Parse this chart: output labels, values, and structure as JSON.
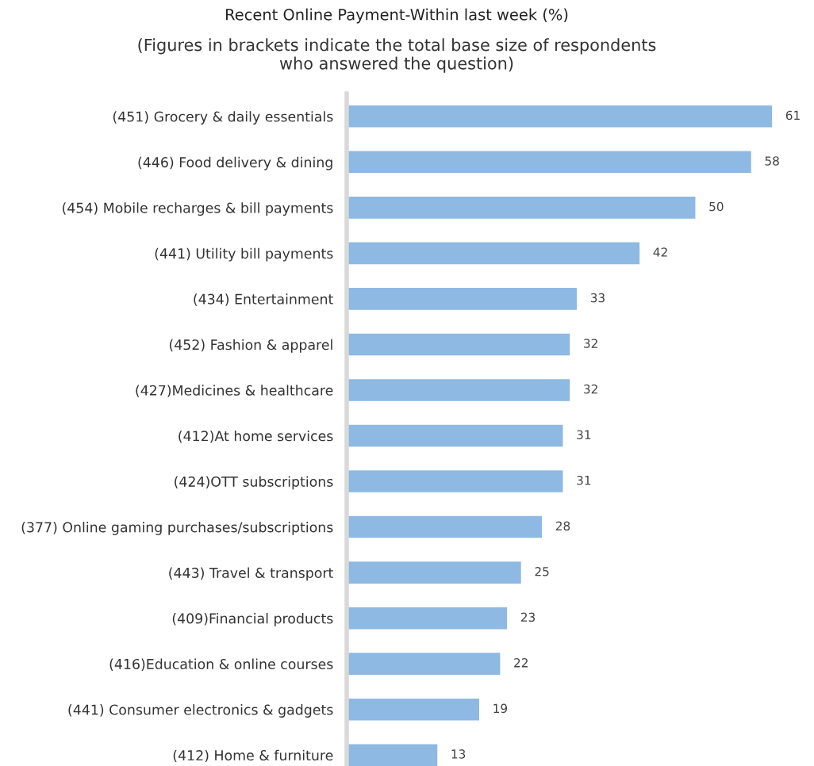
{
  "chart_data": {
    "type": "bar",
    "orientation": "horizontal",
    "title": "Recent Online Payment-Within last week (%)",
    "subtitle": "(Figures in brackets indicate the total base size of respondents\nwho answered the question)",
    "categories": [
      "(451) Grocery & daily essentials",
      "(446) Food delivery & dining",
      "(454) Mobile recharges & bill payments",
      "(441) Utility bill payments",
      "(434) Entertainment",
      "(452) Fashion & apparel",
      "(427)Medicines & healthcare",
      "(412)At home services",
      "(424)OTT subscriptions",
      "(377) Online gaming purchases/subscriptions",
      "(443) Travel & transport",
      "(409)Financial products",
      "(416)Education & online courses",
      "(441) Consumer electronics & gadgets",
      "(412) Home & furniture"
    ],
    "values": [
      61,
      58,
      50,
      42,
      33,
      32,
      32,
      31,
      31,
      28,
      25,
      23,
      22,
      19,
      13
    ],
    "color": "#8db9e2",
    "data_labels": true,
    "grid": false,
    "legend": false
  }
}
